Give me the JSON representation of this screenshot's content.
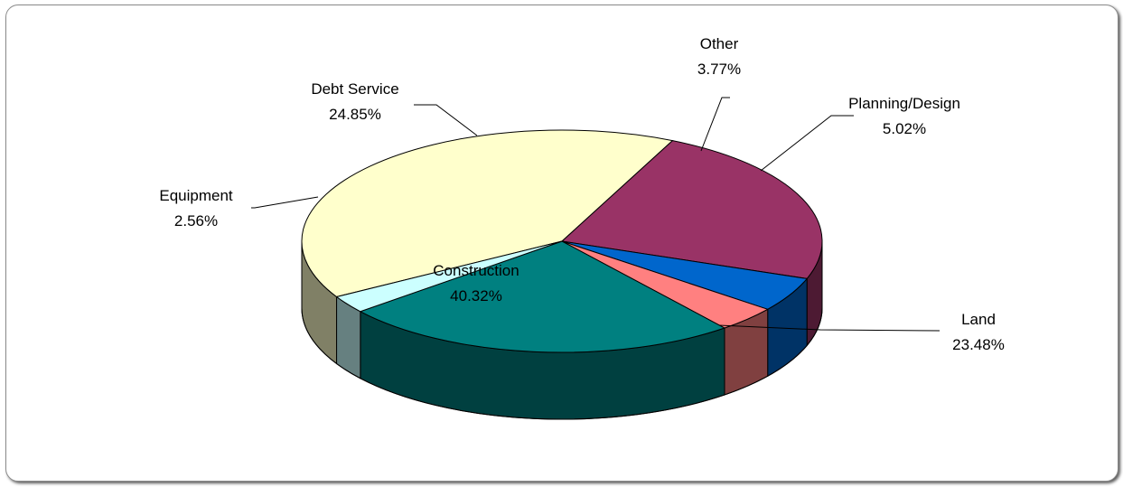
{
  "chart_data": {
    "type": "pie",
    "title": "",
    "slices": [
      {
        "label": "Construction",
        "value": 40.32,
        "value_label": "40.32%",
        "color": "#FFFFCC"
      },
      {
        "label": "Land",
        "value": 23.48,
        "value_label": "23.48%",
        "color": "#993366"
      },
      {
        "label": "Planning/Design",
        "value": 5.02,
        "value_label": "5.02%",
        "color": "#0066CC"
      },
      {
        "label": "Other",
        "value": 3.77,
        "value_label": "3.77%",
        "color": "#FF8080"
      },
      {
        "label": "Debt Service",
        "value": 24.85,
        "value_label": "24.85%",
        "color": "#008080"
      },
      {
        "label": "Equipment",
        "value": 2.56,
        "value_label": "2.56%",
        "color": "#CCFFFF"
      }
    ],
    "legend": "none",
    "three_d": true
  }
}
